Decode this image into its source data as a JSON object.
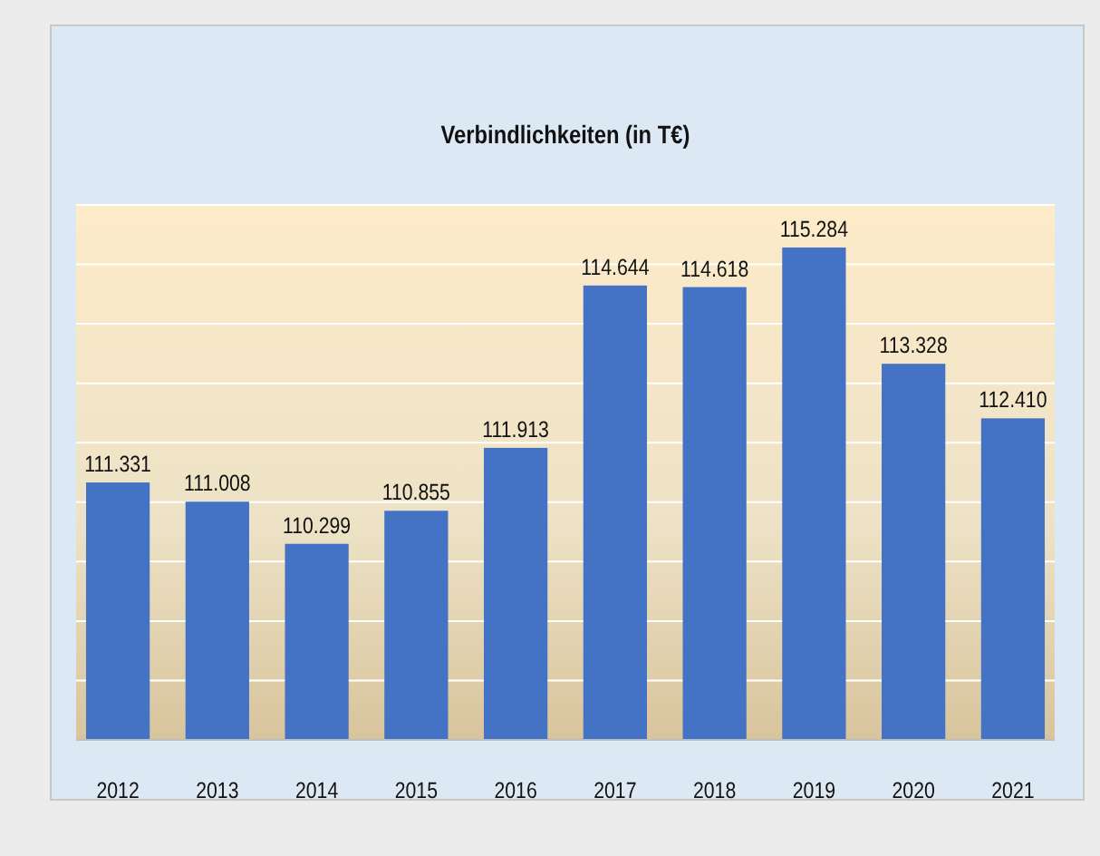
{
  "chart_data": {
    "type": "bar",
    "title": "Verbindlichkeiten (in T€)",
    "categories": [
      "2012",
      "2013",
      "2014",
      "2015",
      "2016",
      "2017",
      "2018",
      "2019",
      "2020",
      "2021"
    ],
    "values": [
      111331,
      111008,
      110299,
      110855,
      111913,
      114644,
      114618,
      115284,
      113328,
      112410
    ],
    "value_labels": [
      "111.331",
      "111.008",
      "110.299",
      "110.855",
      "111.913",
      "114.644",
      "114.618",
      "115.284",
      "113.328",
      "112.410"
    ],
    "color": "#4472c4",
    "ylim": [
      107000,
      116000
    ],
    "yticks": [
      {
        "value": 107000,
        "label": null
      },
      {
        "value": 108000,
        "label": null
      },
      {
        "value": 109000,
        "label": null
      },
      {
        "value": 110000,
        "label": null
      },
      {
        "value": 111000,
        "label": null
      },
      {
        "value": 112000,
        "label": null
      },
      {
        "value": 113000,
        "label": null
      },
      {
        "value": 114000,
        "label": null
      },
      {
        "value": 115000,
        "label": null
      },
      {
        "value": 116000,
        "label": null
      }
    ],
    "grid": "y",
    "tick_labels": "x"
  }
}
